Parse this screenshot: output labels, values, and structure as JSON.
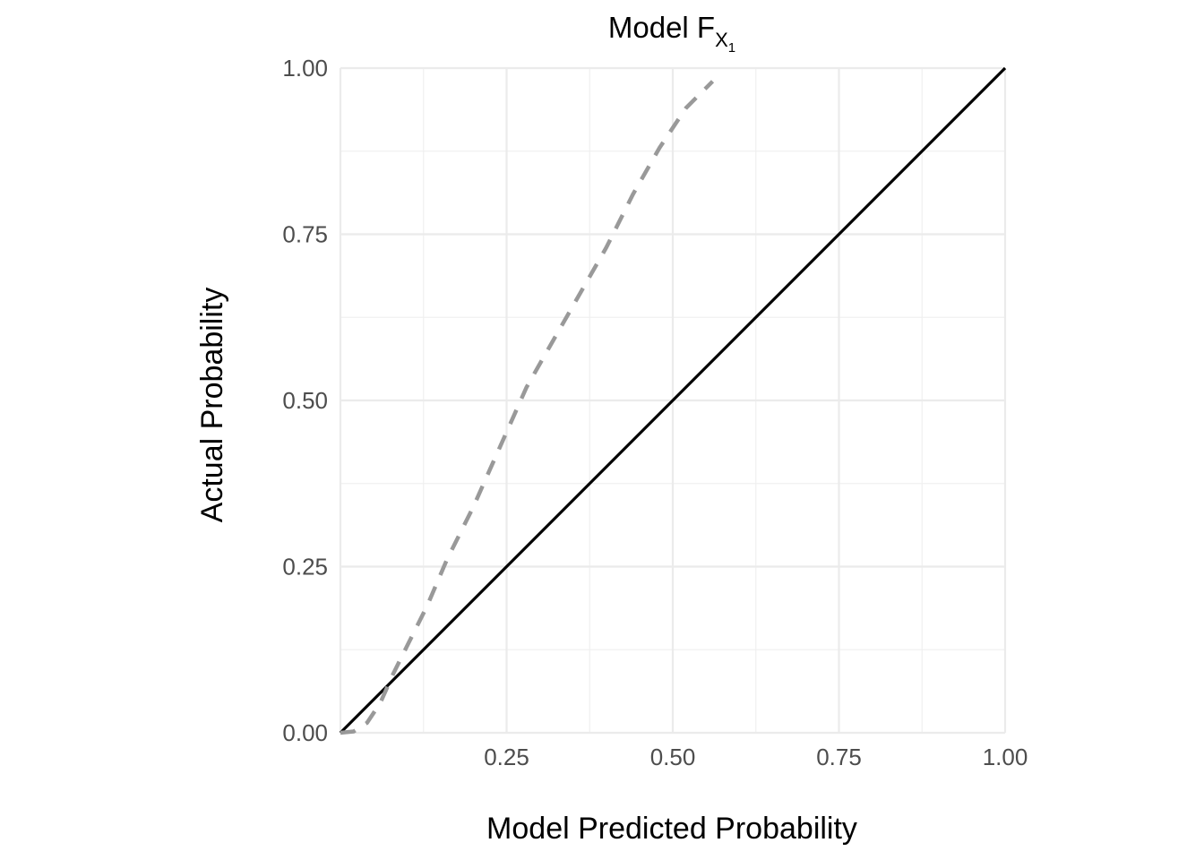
{
  "chart_data": {
    "type": "line",
    "title": "Model F",
    "title_subscript": "X",
    "title_subsubscript": "1",
    "xlabel": "Model Predicted Probability",
    "ylabel": "Actual Probability",
    "xlim": [
      0,
      1
    ],
    "ylim": [
      0,
      1
    ],
    "x_ticks": [
      0.25,
      0.5,
      0.75,
      1.0
    ],
    "x_tick_labels": [
      "0.25",
      "0.50",
      "0.75",
      "1.00"
    ],
    "y_ticks": [
      0,
      0.25,
      0.5,
      0.75,
      1.0
    ],
    "y_tick_labels": [
      "0.00",
      "0.25",
      "0.50",
      "0.75",
      "1.00"
    ],
    "minor_grid": [
      0.125,
      0.375,
      0.625,
      0.875
    ],
    "grid": true,
    "legend": "none",
    "series": [
      {
        "style": "solid",
        "color": "#000000",
        "x": [
          0,
          1
        ],
        "y": [
          0,
          1
        ]
      },
      {
        "style": "dashed",
        "color": "#999999",
        "x": [
          0.0,
          0.02,
          0.04,
          0.06,
          0.08,
          0.1,
          0.13,
          0.16,
          0.2,
          0.24,
          0.28,
          0.32,
          0.36,
          0.4,
          0.44,
          0.48,
          0.52,
          0.56
        ],
        "y": [
          0.0,
          0.002,
          0.015,
          0.045,
          0.09,
          0.13,
          0.19,
          0.26,
          0.34,
          0.43,
          0.52,
          0.59,
          0.66,
          0.73,
          0.81,
          0.88,
          0.94,
          0.98
        ]
      }
    ]
  }
}
